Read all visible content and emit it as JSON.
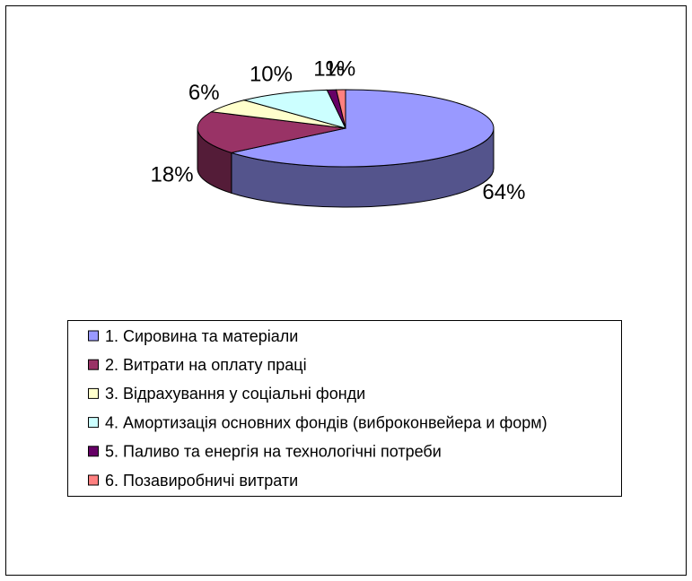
{
  "chart_data": {
    "type": "pie",
    "categories": [
      "1. Сировина та матеріали",
      "2. Витрати на оплату праці",
      "3. Відрахування у соціальні фонди",
      "4. Амортизація основних фондів (виброконвейера и форм)",
      "5. Паливо та енергія на технологічні потреби",
      "6. Позавиробничі витрати"
    ],
    "values": [
      64,
      18,
      6,
      10,
      1,
      1
    ],
    "value_labels": [
      "64%",
      "18%",
      "6%",
      "10%",
      "1%",
      "1%"
    ],
    "colors": [
      "#9999ff",
      "#993366",
      "#ffffcc",
      "#ccffff",
      "#660066",
      "#ff8080"
    ],
    "legend": "bottom"
  }
}
